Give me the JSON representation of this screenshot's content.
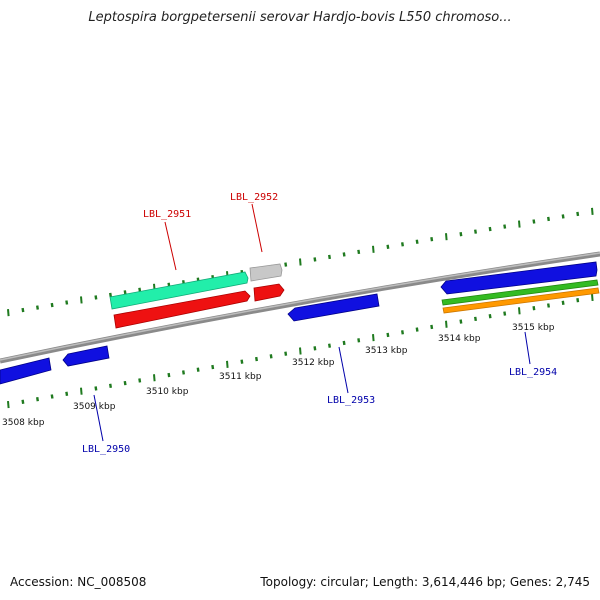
{
  "title": "Leptospira borgpetersenii serovar Hardjo-bovis L550 chromoso...",
  "footer": {
    "accession": "Accession: NC_008508",
    "summary": "Topology: circular; Length: 3,614,446 bp; Genes: 2,745"
  },
  "colors": {
    "backbone": "#888888",
    "tick_major": "#1f7a1f",
    "tick_minor": "#1f7a1f",
    "blue": "#1010e0",
    "red": "#ee1111",
    "teal": "#22eeaa",
    "gray": "#c4c4c4",
    "green": "#33bb22",
    "orange": "#ff9900",
    "label_red": "#cc0000",
    "label_blue": "#0000aa"
  },
  "axis": {
    "unit": "kbp",
    "tick_labels": [
      "3508 kbp",
      "3509 kbp",
      "3510 kbp",
      "3511 kbp",
      "3512 kbp",
      "3513 kbp",
      "3514 kbp",
      "3515 kbp"
    ]
  },
  "genes": [
    {
      "label": "LBL_2950",
      "color": "blue"
    },
    {
      "label": "LBL_2951",
      "color": "red"
    },
    {
      "label": "LBL_2952",
      "color": "red"
    },
    {
      "label": "LBL_2953",
      "color": "blue"
    },
    {
      "label": "LBL_2954",
      "color": "blue"
    }
  ]
}
